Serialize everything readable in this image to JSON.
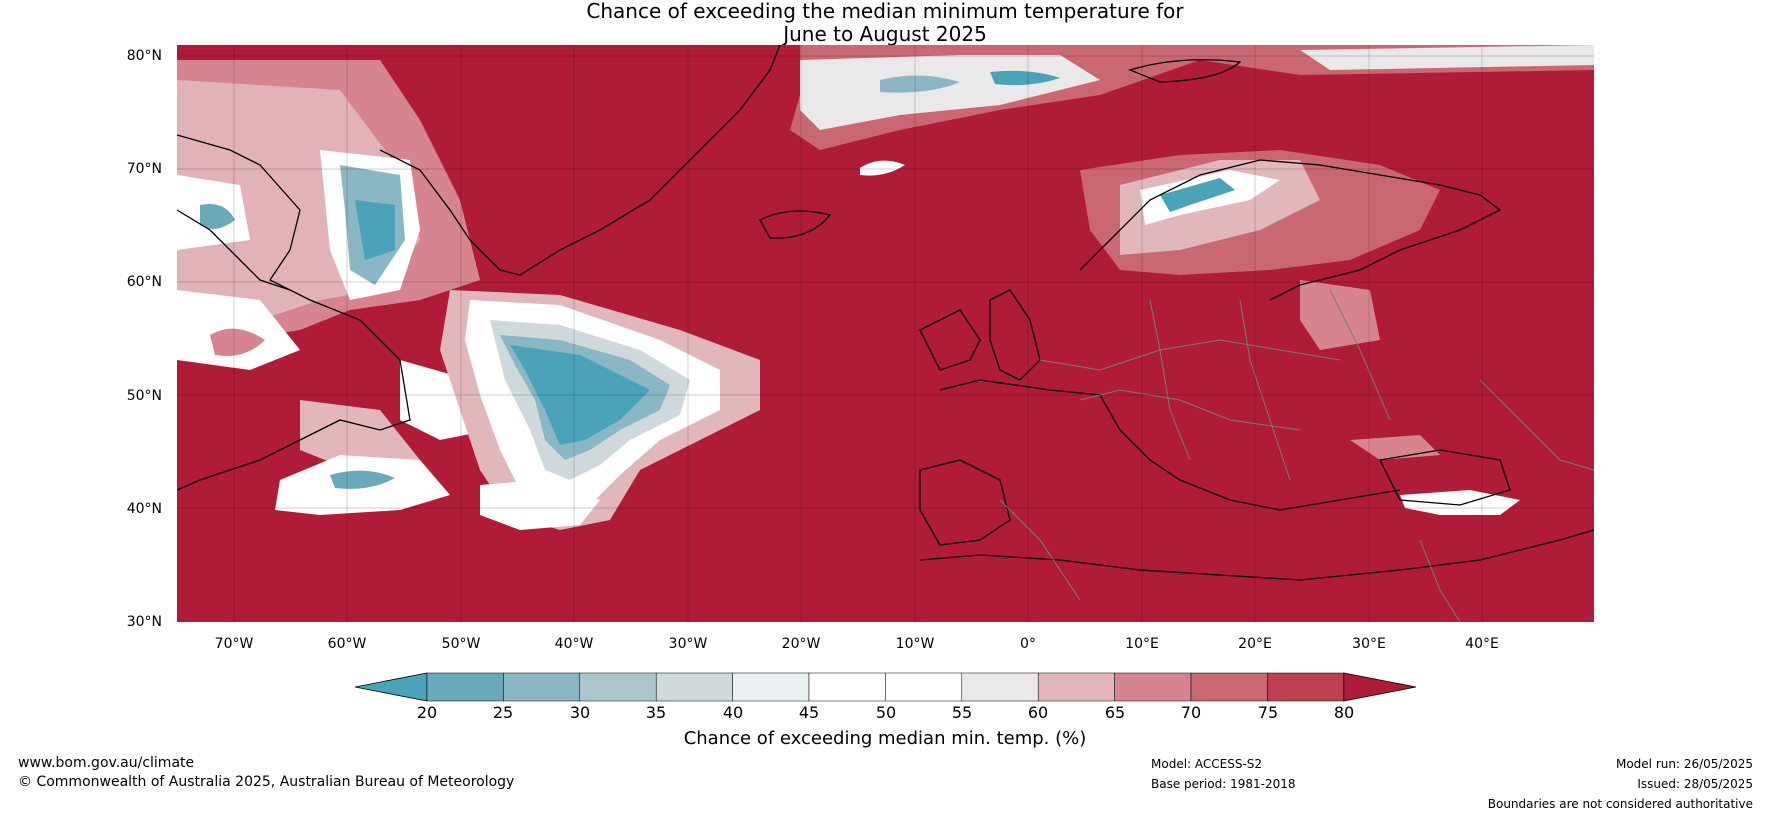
{
  "title": {
    "line1": "Chance of exceeding the median minimum temperature for",
    "line2": "June to August 2025"
  },
  "map": {
    "lat_labels": [
      "80°N",
      "70°N",
      "60°N",
      "50°N",
      "40°N",
      "30°N"
    ],
    "lon_labels": [
      "70°W",
      "60°W",
      "50°W",
      "40°W",
      "30°W",
      "20°W",
      "10°W",
      "0°",
      "10°E",
      "20°E",
      "30°E",
      "40°E"
    ],
    "lat_range": [
      30,
      80
    ],
    "lon_range": [
      -75,
      50
    ],
    "dominant_color": "#b01c38",
    "low_color": "#4aa3b8"
  },
  "colorbar": {
    "ticks": [
      "20",
      "25",
      "30",
      "35",
      "40",
      "45",
      "50",
      "55",
      "60",
      "65",
      "70",
      "75",
      "80"
    ],
    "colors": [
      "#4aa3b8",
      "#6aa9b9",
      "#8bb6c3",
      "#adc6cd",
      "#cfd9db",
      "#eaf1f2",
      "#ffffff",
      "#ffffff",
      "#ebe8e9",
      "#e2b7bc",
      "#d6848f",
      "#c96872",
      "#bd4050",
      "#b01c38"
    ],
    "label": "Chance of exceeding median min. temp. (%)"
  },
  "footer": {
    "website": "www.bom.gov.au/climate",
    "copyright": "© Commonwealth of Australia 2025, Australian Bureau of Meteorology",
    "model": "Model: ACCESS-S2",
    "base_period": "Base period: 1981-2018",
    "model_run": "Model run: 26/05/2025",
    "issued": "Issued: 28/05/2025",
    "disclaimer": "Boundaries are not considered authoritative"
  }
}
